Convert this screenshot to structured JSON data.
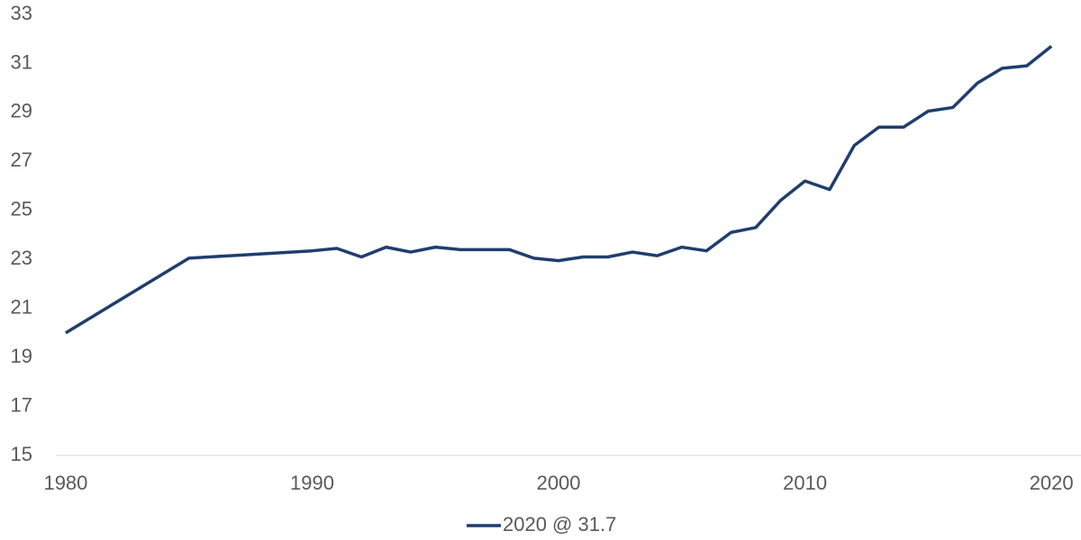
{
  "chart_data": {
    "type": "line",
    "x": [
      1980,
      1985,
      1990,
      1991,
      1992,
      1993,
      1994,
      1995,
      1996,
      1997,
      1998,
      1999,
      2000,
      2001,
      2002,
      2003,
      2004,
      2005,
      2006,
      2007,
      2008,
      2009,
      2010,
      2011,
      2012,
      2013,
      2014,
      2015,
      2016,
      2017,
      2018,
      2019,
      2020
    ],
    "series": [
      {
        "name": "2020 @ 31.7",
        "color": "#1f3e6e",
        "values": [
          20.0,
          23.05,
          23.35,
          23.45,
          23.1,
          23.5,
          23.3,
          23.5,
          23.4,
          23.4,
          23.4,
          23.05,
          22.95,
          23.1,
          23.1,
          23.3,
          23.15,
          23.5,
          23.35,
          24.1,
          24.3,
          25.4,
          26.2,
          25.85,
          27.65,
          28.4,
          28.4,
          29.05,
          29.2,
          30.2,
          30.8,
          30.9,
          31.7
        ]
      }
    ],
    "xlim": [
      1979.6,
      2021.2
    ],
    "xticks": [
      1980,
      1990,
      2000,
      2010,
      2020
    ],
    "ylim": [
      15,
      33
    ],
    "yticks": [
      15,
      17,
      19,
      21,
      23,
      25,
      27,
      29,
      31,
      33
    ],
    "legend": "bottom"
  }
}
